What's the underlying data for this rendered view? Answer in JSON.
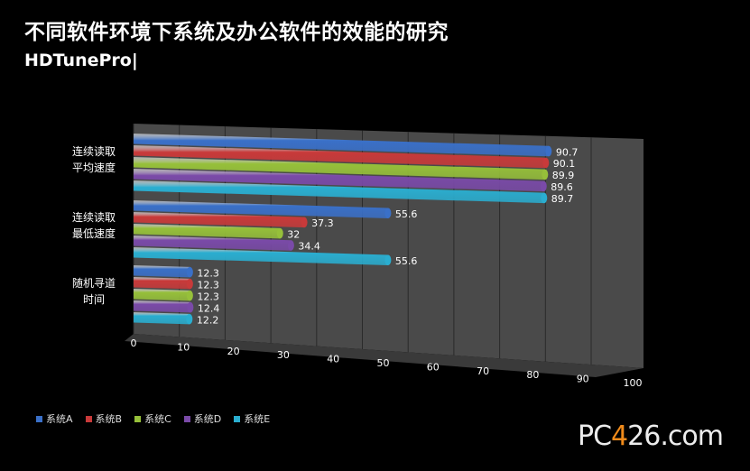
{
  "title": "不同软件环境下系统及办公软件的效能的研究",
  "subtitle": "HDTunePro|",
  "watermark": {
    "prefix": "PC",
    "middle": "4",
    "suffix": "26.com"
  },
  "chart_data": {
    "type": "bar",
    "orientation": "horizontal",
    "style": "3d-cylinder",
    "categories": [
      "连续读取\n平均速度",
      "连续读取\n最低速度",
      "随机寻道\n时间"
    ],
    "series": [
      {
        "name": "系统A",
        "color": "#3a70c8",
        "values": [
          90.7,
          55.6,
          12.3
        ]
      },
      {
        "name": "系统B",
        "color": "#c83a3a",
        "values": [
          90.1,
          37.3,
          12.3
        ]
      },
      {
        "name": "系统C",
        "color": "#96c03a",
        "values": [
          89.9,
          32,
          12.3
        ]
      },
      {
        "name": "系统D",
        "color": "#7a4aa8",
        "values": [
          89.6,
          34.4,
          12.4
        ]
      },
      {
        "name": "系统E",
        "color": "#2aaed0",
        "values": [
          89.7,
          55.6,
          12.2
        ]
      }
    ],
    "data_labels": [
      [
        "90.7",
        "55.6",
        "12.3"
      ],
      [
        "90.1",
        "37.3",
        "12.3"
      ],
      [
        "89.9",
        "32",
        "12.3"
      ],
      [
        "89.6",
        "34.4",
        "12.4"
      ],
      [
        "89.7",
        "55.6",
        "12.2"
      ]
    ],
    "xticks": [
      "0",
      "10",
      "20",
      "30",
      "40",
      "50",
      "60",
      "70",
      "80",
      "90",
      "100"
    ],
    "xlim": [
      0,
      100
    ],
    "grid": true,
    "legend": "bottom-left"
  }
}
